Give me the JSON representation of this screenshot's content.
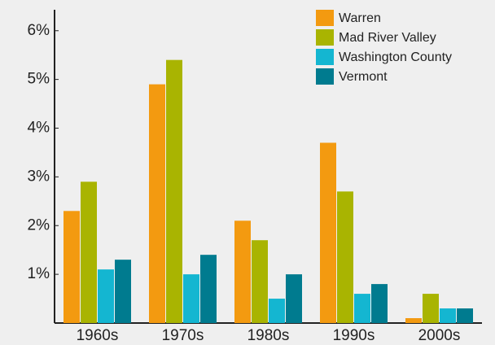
{
  "chart_data": {
    "type": "bar",
    "categories": [
      "1960s",
      "1970s",
      "1980s",
      "1990s",
      "2000s"
    ],
    "series": [
      {
        "name": "Warren",
        "color": "#f39a10",
        "values": [
          2.3,
          4.9,
          2.1,
          3.7,
          0.1
        ]
      },
      {
        "name": "Mad River Valley",
        "color": "#a9b401",
        "values": [
          2.9,
          5.4,
          1.7,
          2.7,
          0.6
        ]
      },
      {
        "name": "Washington County",
        "color": "#14b6d1",
        "values": [
          1.1,
          1.0,
          0.5,
          0.6,
          0.3
        ]
      },
      {
        "name": "Vermont",
        "color": "#007b8f",
        "values": [
          1.3,
          1.4,
          1.0,
          0.8,
          0.3
        ]
      }
    ],
    "ylim": [
      0,
      6.43
    ],
    "yticks": [
      {
        "value": 1,
        "label": "1%"
      },
      {
        "value": 2,
        "label": "2%"
      },
      {
        "value": 3,
        "label": "3%"
      },
      {
        "value": 4,
        "label": "4%"
      },
      {
        "value": 5,
        "label": "5%"
      },
      {
        "value": 6,
        "label": "6%"
      }
    ],
    "legend": "upper right"
  }
}
